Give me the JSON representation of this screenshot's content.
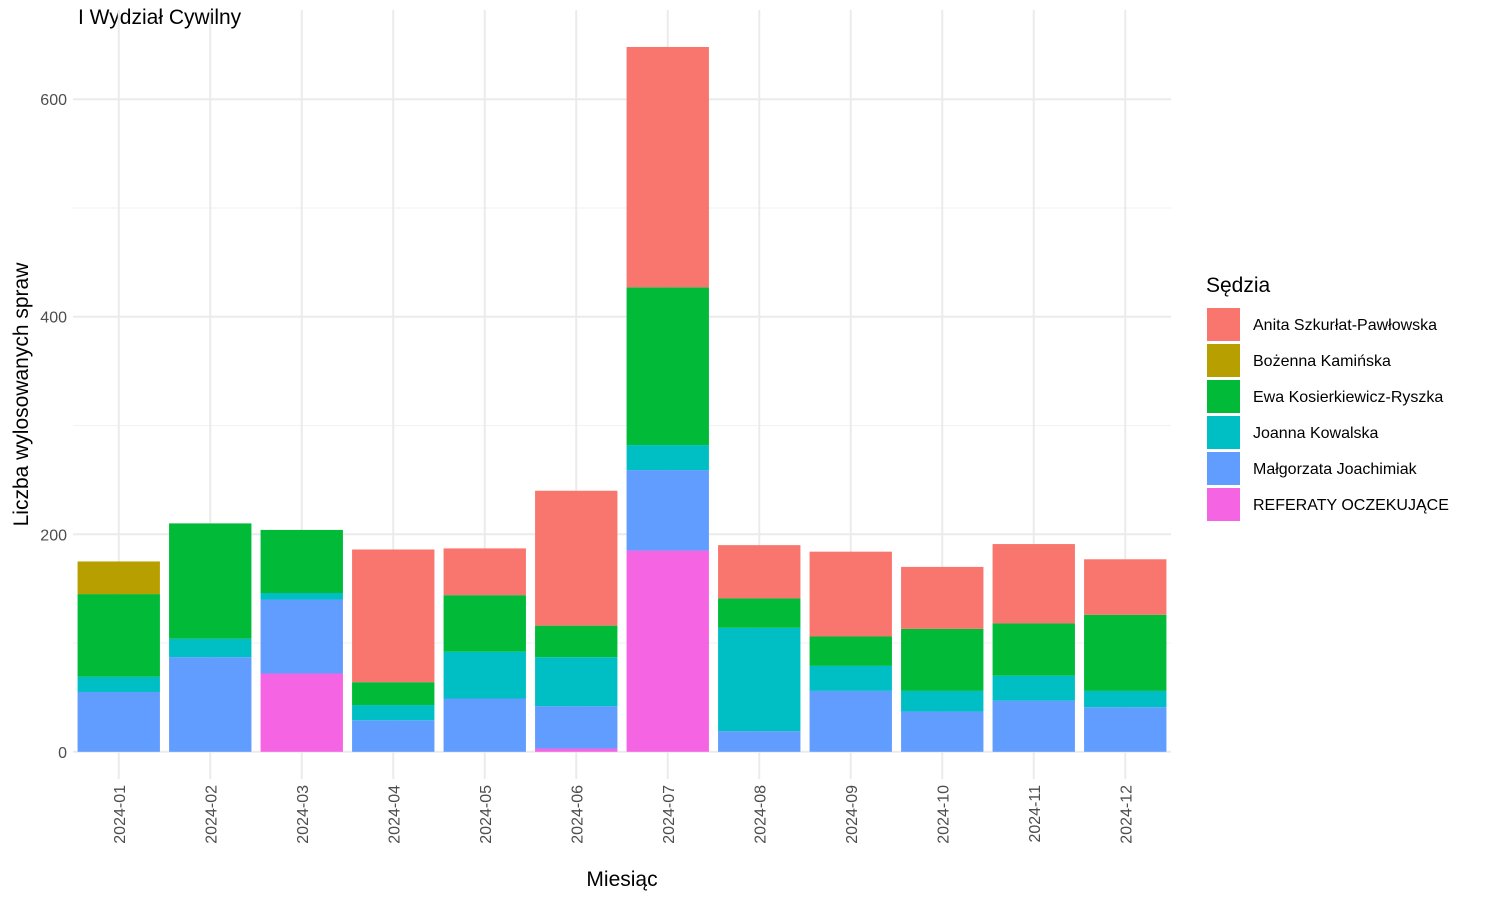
{
  "chart_data": {
    "type": "bar",
    "stacked": true,
    "title": "I Wydział Cywilny",
    "xlabel": "Miesiąc",
    "ylabel": "Liczba wylosowanych spraw",
    "ylim": [
      -25,
      682
    ],
    "y_ticks": [
      0,
      200,
      400,
      600
    ],
    "grid": true,
    "legend": {
      "title": "Sędzia",
      "position": "right"
    },
    "categories": [
      "2024-01",
      "2024-02",
      "2024-03",
      "2024-04",
      "2024-05",
      "2024-06",
      "2024-07",
      "2024-08",
      "2024-09",
      "2024-10",
      "2024-11",
      "2024-12"
    ],
    "series": [
      {
        "name": "REFERATY OCZEKUJĄCE",
        "color": "#F564E3",
        "values": [
          0,
          0,
          72,
          0,
          0,
          3,
          185,
          0,
          0,
          0,
          0,
          0
        ]
      },
      {
        "name": "Małgorzata Joachimiak",
        "color": "#619CFF",
        "values": [
          55,
          87,
          68,
          29,
          49,
          39,
          74,
          19,
          56,
          37,
          47,
          41
        ]
      },
      {
        "name": "Joanna Kowalska",
        "color": "#00BFC4",
        "values": [
          14,
          17,
          6,
          14,
          43,
          45,
          23,
          95,
          23,
          19,
          23,
          15
        ]
      },
      {
        "name": "Ewa Kosierkiewicz-Ryszka",
        "color": "#00BA38",
        "values": [
          76,
          106,
          58,
          21,
          52,
          29,
          145,
          27,
          27,
          57,
          48,
          70
        ]
      },
      {
        "name": "Bożenna Kamińska",
        "color": "#B79F00",
        "values": [
          30,
          0,
          0,
          0,
          0,
          0,
          0,
          0,
          0,
          0,
          0,
          0
        ]
      },
      {
        "name": "Anita Szkurłat-Pawłowska",
        "color": "#F8766D",
        "values": [
          0,
          0,
          0,
          122,
          43,
          124,
          221,
          49,
          78,
          57,
          73,
          51
        ]
      }
    ],
    "legend_order": [
      "Anita Szkurłat-Pawłowska",
      "Bożenna Kamińska",
      "Ewa Kosierkiewicz-Ryszka",
      "Joanna Kowalska",
      "Małgorzata Joachimiak",
      "REFERATY OCZEKUJĄCE"
    ]
  }
}
